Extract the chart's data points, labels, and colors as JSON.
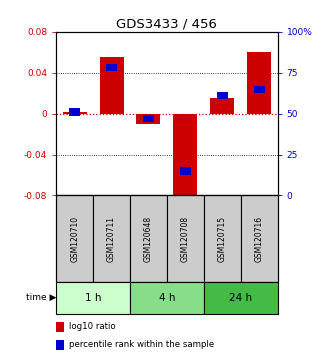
{
  "title": "GDS3433 / 456",
  "samples": [
    "GSM120710",
    "GSM120711",
    "GSM120648",
    "GSM120708",
    "GSM120715",
    "GSM120716"
  ],
  "log10_ratio": [
    0.002,
    0.055,
    -0.01,
    -0.085,
    0.015,
    0.06
  ],
  "percentile_rank": [
    0.51,
    0.78,
    0.47,
    0.15,
    0.61,
    0.65
  ],
  "ylim_left": [
    -0.08,
    0.08
  ],
  "ylim_right": [
    0,
    100
  ],
  "bar_width": 0.65,
  "red_color": "#cc0000",
  "blue_color": "#0000cc",
  "dotted_red_color": "#cc0000",
  "dotted_black_color": "#000000",
  "time_groups": [
    {
      "label": "1 h",
      "start": 0,
      "end": 2,
      "color": "#ccffcc"
    },
    {
      "label": "4 h",
      "start": 2,
      "end": 4,
      "color": "#88dd88"
    },
    {
      "label": "24 h",
      "start": 4,
      "end": 6,
      "color": "#44bb44"
    }
  ],
  "left_tick_color": "#cc0000",
  "right_tick_color": "#0000cc",
  "sample_box_color": "#cccccc",
  "legend_labels": [
    "log10 ratio",
    "percentile rank within the sample"
  ],
  "legend_colors": [
    "#cc0000",
    "#0000cc"
  ],
  "yticks_left": [
    -0.08,
    -0.04,
    0,
    0.04,
    0.08
  ],
  "ytick_labels_left": [
    "-0.08",
    "-0.04",
    "0",
    "0.04",
    "0.08"
  ],
  "yticks_right": [
    0,
    25,
    50,
    75,
    100
  ],
  "ytick_labels_right": [
    "0",
    "25",
    "50",
    "75",
    "100%"
  ]
}
